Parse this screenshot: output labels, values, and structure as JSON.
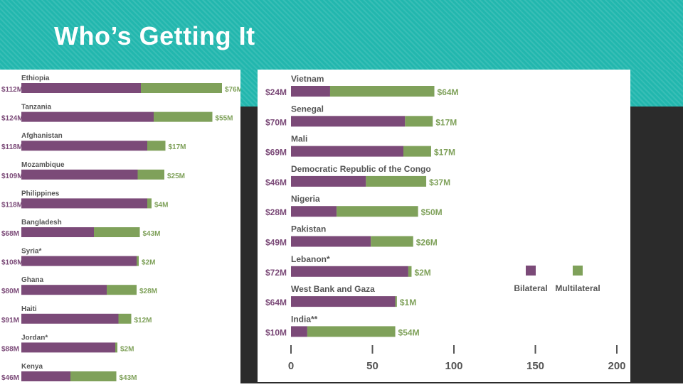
{
  "slide": {
    "title": "Who’s Getting It"
  },
  "colors": {
    "bilateral": "#7b4a78",
    "multilateral": "#7fa15a",
    "teal": "#22b7ae",
    "dark": "#2b2b2b",
    "label": "#555555"
  },
  "chart_data": [
    {
      "type": "bar",
      "orientation": "horizontal",
      "stacked": true,
      "title": "",
      "categories": [
        "Ethiopia",
        "Tanzania",
        "Afghanistan",
        "Mozambique",
        "Philippines",
        "Bangladesh",
        "Syria*",
        "Ghana",
        "Haiti",
        "Jordan*",
        "Kenya"
      ],
      "series": [
        {
          "name": "Bilateral",
          "values": [
            112,
            124,
            118,
            109,
            118,
            68,
            108,
            80,
            91,
            88,
            46
          ],
          "labels": [
            "$112M",
            "$124M",
            "$118M",
            "$109M",
            "$118M",
            "$68M",
            "$108M",
            "$80M",
            "$91M",
            "$88M",
            "$46M"
          ]
        },
        {
          "name": "Multilateral",
          "values": [
            76,
            55,
            17,
            25,
            4,
            43,
            2,
            28,
            12,
            2,
            43
          ],
          "labels": [
            "$76M",
            "$55M",
            "$17M",
            "$25M",
            "$4M",
            "$43M",
            "$2M",
            "$28M",
            "$12M",
            "$2M",
            "$43M"
          ]
        }
      ],
      "xlim": [
        0,
        200
      ]
    },
    {
      "type": "bar",
      "orientation": "horizontal",
      "stacked": true,
      "title": "",
      "categories": [
        "Vietnam",
        "Senegal",
        "Mali",
        "Democratic Republic of the Congo",
        "Nigeria",
        "Pakistan",
        "Lebanon*",
        "West Bank and Gaza",
        "India**"
      ],
      "series": [
        {
          "name": "Bilateral",
          "values": [
            24,
            70,
            69,
            46,
            28,
            49,
            72,
            64,
            10
          ],
          "labels": [
            "$24M",
            "$70M",
            "$69M",
            "$46M",
            "$28M",
            "$49M",
            "$72M",
            "$64M",
            "$10M"
          ]
        },
        {
          "name": "Multilateral",
          "values": [
            64,
            17,
            17,
            37,
            50,
            26,
            2,
            1,
            54
          ],
          "labels": [
            "$64M",
            "$17M",
            "$17M",
            "$37M",
            "$50M",
            "$26M",
            "$2M",
            "$1M",
            "$54M"
          ]
        }
      ],
      "xlim": [
        0,
        200
      ],
      "xticks": [
        0,
        50,
        100,
        150,
        200
      ],
      "legend": {
        "position": "right",
        "items": [
          "Bilateral",
          "Multilateral"
        ]
      }
    }
  ]
}
